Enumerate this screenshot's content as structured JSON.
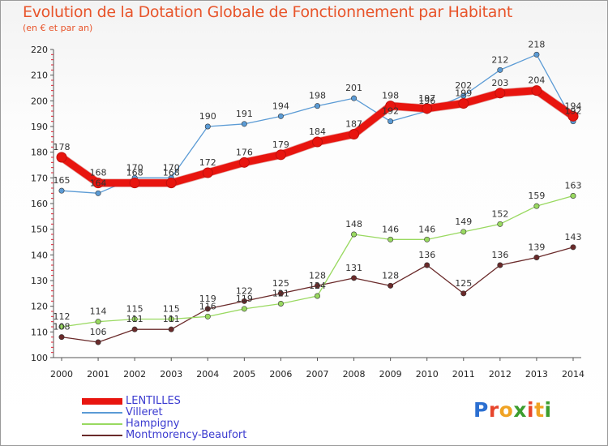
{
  "title": "Evolution de la Dotation Globale de Fonctionnement par Habitant",
  "subtitle": "(en € et par an)",
  "logo": {
    "text": "Proxiti",
    "letters": [
      "P",
      "r",
      "o",
      "x",
      "i",
      "t",
      "i"
    ],
    "colors": [
      "#2b6fd1",
      "#e7452c",
      "#f0a324",
      "#3c9d2e",
      "#e7452c",
      "#f0a324",
      "#3c9d2e"
    ]
  },
  "chart_data": {
    "type": "line",
    "x": [
      "2000",
      "2001",
      "2002",
      "2003",
      "2004",
      "2005",
      "2006",
      "2007",
      "2008",
      "2009",
      "2010",
      "2011",
      "2012",
      "2013",
      "2014"
    ],
    "ylim": [
      100,
      220
    ],
    "yticks": [
      "100",
      "110",
      "120",
      "130",
      "140",
      "150",
      "160",
      "170",
      "180",
      "190",
      "200",
      "210",
      "220"
    ],
    "grid": false,
    "legend_position": "bottom-left",
    "series": [
      {
        "name": "LENTILLES",
        "color": "#e8150f",
        "width": 9,
        "values": [
          178,
          168,
          168,
          168,
          172,
          176,
          179,
          184,
          187,
          198,
          197,
          199,
          203,
          204,
          194
        ],
        "labels": [
          "178",
          "168",
          "168",
          "168",
          "172",
          "176",
          "179",
          "184",
          "187",
          "198",
          "197",
          "199",
          "203",
          "204",
          "194"
        ]
      },
      {
        "name": "Villeret",
        "color": "#5b9bd5",
        "width": 1.3,
        "values": [
          165,
          164,
          170,
          170,
          190,
          191,
          194,
          198,
          201,
          192,
          196,
          202,
          212,
          218,
          192
        ],
        "labels": [
          "165",
          "164",
          "170",
          "170",
          "190",
          "191",
          "194",
          "198",
          "201",
          "192",
          "196",
          "202",
          "212",
          "218",
          "192"
        ]
      },
      {
        "name": "Hampigny",
        "color": "#99d960",
        "width": 1.3,
        "values": [
          112,
          114,
          115,
          115,
          116,
          119,
          121,
          124,
          148,
          146,
          146,
          149,
          152,
          159,
          163
        ],
        "labels": [
          "112",
          "114",
          "115",
          "115",
          "116",
          "119",
          "121",
          "124",
          "148",
          "146",
          "146",
          "149",
          "152",
          "159",
          "163"
        ]
      },
      {
        "name": "Montmorency-Beaufort",
        "color": "#6a2a2a",
        "width": 1.3,
        "values": [
          108,
          106,
          111,
          111,
          119,
          122,
          125,
          128,
          131,
          128,
          136,
          125,
          136,
          139,
          143
        ],
        "labels": [
          "108",
          "106",
          "111",
          "111",
          "119",
          "122",
          "125",
          "128",
          "131",
          "128",
          "136",
          "125",
          "136",
          "139",
          "143"
        ]
      }
    ]
  }
}
